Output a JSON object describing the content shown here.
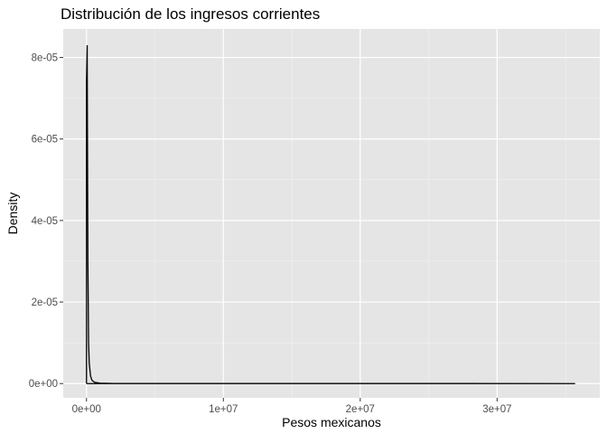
{
  "chart_data": {
    "type": "area",
    "title": "Distribución de los ingresos corrientes",
    "xlabel": "Pesos mexicanos",
    "ylabel": "Density",
    "xlim": [
      -1700000,
      37500000
    ],
    "ylim": [
      -3.5e-06,
      8.7e-05
    ],
    "x_ticks": [
      {
        "value": 0,
        "label": "0e+00"
      },
      {
        "value": 10000000,
        "label": "1e+07"
      },
      {
        "value": 20000000,
        "label": "2e+07"
      },
      {
        "value": 30000000,
        "label": "3e+07"
      }
    ],
    "y_ticks": [
      {
        "value": 0,
        "label": "0e+00"
      },
      {
        "value": 2e-05,
        "label": "2e-05"
      },
      {
        "value": 4e-05,
        "label": "4e-05"
      },
      {
        "value": 6e-05,
        "label": "6e-05"
      },
      {
        "value": 8e-05,
        "label": "8e-05"
      }
    ],
    "grid": true,
    "series": [
      {
        "x": [
          0,
          50000,
          100000,
          150000,
          200000,
          300000,
          400000,
          600000,
          1000000,
          2000000,
          35700000
        ],
        "y": [
          7.4e-05,
          8.3e-05,
          3e-05,
          1.05e-05,
          5e-06,
          1.8e-06,
          8e-07,
          3e-07,
          1e-07,
          2e-08,
          0
        ]
      }
    ],
    "colors": {
      "panel": "#e5e5e5",
      "grid_major": "#ffffff",
      "line": "#000000",
      "tick_text": "#4d4d4d"
    }
  }
}
